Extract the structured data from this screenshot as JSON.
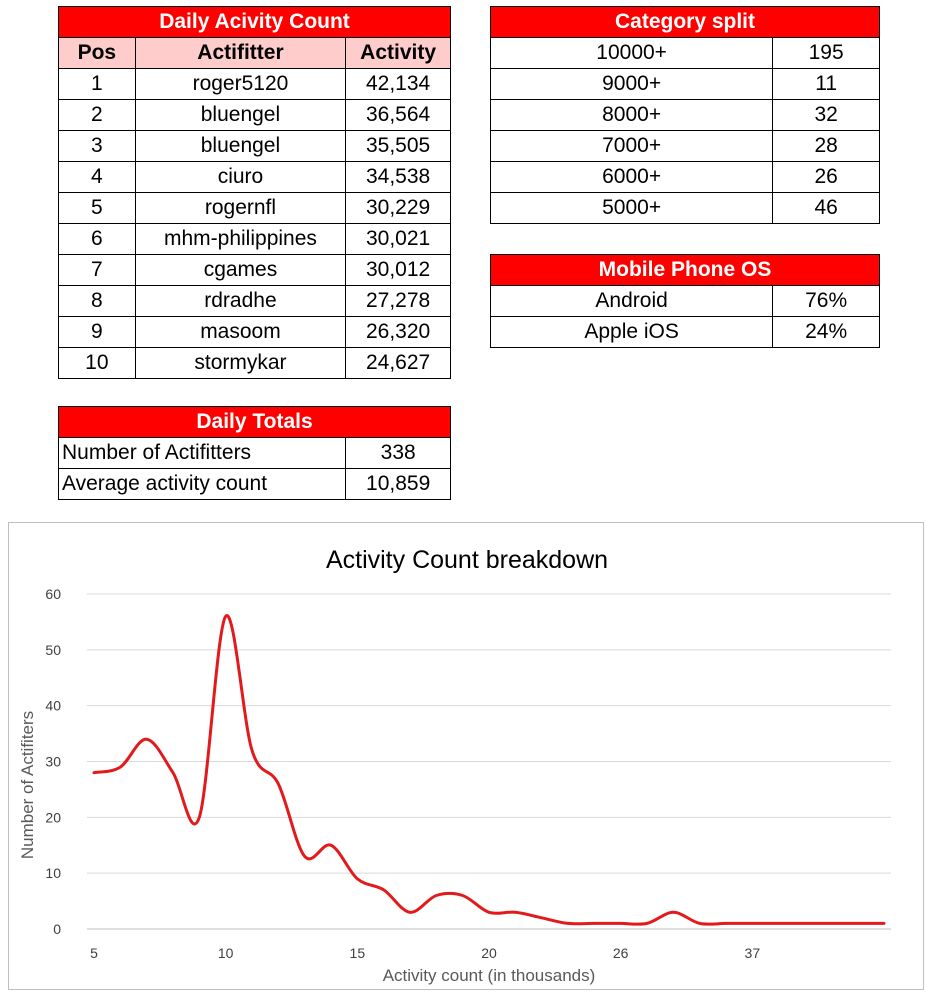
{
  "daily_activity": {
    "title": "Daily Acivity Count",
    "columns": [
      "Pos",
      "Actifitter",
      "Activity"
    ],
    "rows": [
      [
        "1",
        "roger5120",
        "42,134"
      ],
      [
        "2",
        "bluengel",
        "36,564"
      ],
      [
        "3",
        "bluengel",
        "35,505"
      ],
      [
        "4",
        "ciuro",
        "34,538"
      ],
      [
        "5",
        "rogernfl",
        "30,229"
      ],
      [
        "6",
        "mhm-philippines",
        "30,021"
      ],
      [
        "7",
        "cgames",
        "30,012"
      ],
      [
        "8",
        "rdradhe",
        "27,278"
      ],
      [
        "9",
        "masoom",
        "26,320"
      ],
      [
        "10",
        "stormykar",
        "24,627"
      ]
    ]
  },
  "daily_totals": {
    "title": "Daily Totals",
    "rows": [
      [
        "Number of Actifitters",
        "338"
      ],
      [
        "Average activity count",
        "10,859"
      ]
    ]
  },
  "category_split": {
    "title": "Category split",
    "rows": [
      [
        "10000+",
        "195"
      ],
      [
        "9000+",
        "11"
      ],
      [
        "8000+",
        "32"
      ],
      [
        "7000+",
        "28"
      ],
      [
        "6000+",
        "26"
      ],
      [
        "5000+",
        "46"
      ]
    ]
  },
  "mobile_os": {
    "title": "Mobile Phone OS",
    "rows": [
      [
        "Android",
        "76%"
      ],
      [
        "Apple iOS",
        "24%"
      ]
    ]
  },
  "colors": {
    "header_bg": "#ff0000",
    "subheader_bg": "#ffcccc",
    "line": "#e31a1c"
  },
  "chart_data": {
    "type": "line",
    "title": "Activity Count breakdown",
    "xlabel": "Activity count (in thousands)",
    "ylabel": "Number of Actifiters",
    "x": [
      "5",
      "6",
      "7",
      "8",
      "9",
      "10",
      "11",
      "12",
      "13",
      "14",
      "15",
      "16",
      "17",
      "18",
      "19",
      "20",
      "21",
      "22",
      "23",
      "24",
      "25",
      "26",
      "27",
      "28",
      "29",
      "30",
      "34",
      "35",
      "36",
      "37",
      "42"
    ],
    "x_tick_labels": [
      "5",
      "10",
      "15",
      "20",
      "26",
      "37"
    ],
    "series": [
      {
        "values": [
          28,
          29,
          34,
          28,
          20,
          56,
          32,
          26,
          13,
          15,
          9,
          7,
          3,
          6,
          6,
          3,
          3,
          2,
          1,
          1,
          1,
          1,
          3,
          1,
          1,
          1,
          1,
          1,
          1,
          1,
          1
        ]
      }
    ],
    "ylim": [
      0,
      60
    ],
    "yticks": [
      0,
      10,
      20,
      30,
      40,
      50,
      60
    ],
    "grid": true,
    "smooth": true
  }
}
